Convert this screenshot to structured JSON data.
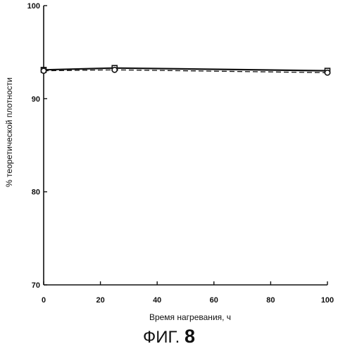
{
  "chart_data": {
    "type": "line",
    "xlabel": "Время нагревания, ч",
    "ylabel": "% теоретической плотности",
    "xlim": [
      0,
      100
    ],
    "ylim": [
      70,
      100
    ],
    "xticks": [
      0,
      20,
      40,
      60,
      80,
      100
    ],
    "yticks": [
      70,
      80,
      90,
      100
    ],
    "grid": false,
    "series": [
      {
        "style": "solid",
        "marker": "square",
        "x": [
          0,
          25,
          100
        ],
        "y": [
          93.1,
          93.3,
          93.0
        ]
      },
      {
        "style": "dashed",
        "marker": "circle",
        "x": [
          0,
          25,
          100
        ],
        "y": [
          93.0,
          93.1,
          92.8
        ]
      }
    ]
  },
  "caption": {
    "prefix": "ФИГ.",
    "number": "8"
  }
}
